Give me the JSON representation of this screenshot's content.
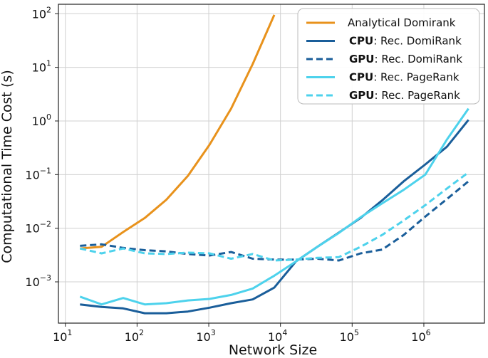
{
  "chart_data": {
    "type": "line",
    "title": "",
    "xlabel": "Network Size",
    "ylabel": "Computational Time Cost (s)",
    "xscale": "log",
    "yscale": "log",
    "xlim": [
      8,
      7000000
    ],
    "ylim": [
      0.00017,
      150
    ],
    "grid": true,
    "legend_position": "top-right",
    "x_ticks": [
      {
        "value": 10,
        "base": "10",
        "exp": "1"
      },
      {
        "value": 100,
        "base": "10",
        "exp": "2"
      },
      {
        "value": 1000,
        "base": "10",
        "exp": "3"
      },
      {
        "value": 10000,
        "base": "10",
        "exp": "4"
      },
      {
        "value": 100000,
        "base": "10",
        "exp": "5"
      },
      {
        "value": 1000000,
        "base": "10",
        "exp": "6"
      }
    ],
    "y_ticks": [
      {
        "value": 0.001,
        "base": "10",
        "exp": "−3"
      },
      {
        "value": 0.01,
        "base": "10",
        "exp": "−2"
      },
      {
        "value": 0.1,
        "base": "10",
        "exp": "−1"
      },
      {
        "value": 1,
        "base": "10",
        "exp": "0"
      },
      {
        "value": 10,
        "base": "10",
        "exp": "1"
      },
      {
        "value": 100,
        "base": "10",
        "exp": "2"
      }
    ],
    "series": [
      {
        "name": "Analytical Domirank",
        "legend_prefix": "",
        "legend_label": "Analytical Domirank",
        "color": "#E8921C",
        "dash": "solid",
        "x": [
          16,
          32,
          64,
          128,
          256,
          512,
          1024,
          2048,
          4096,
          8192
        ],
        "y": [
          0.0042,
          0.0045,
          0.0085,
          0.0155,
          0.034,
          0.095,
          0.36,
          1.7,
          11.5,
          95
        ]
      },
      {
        "name": "CPU: Rec. DomiRank",
        "legend_prefix": "CPU",
        "legend_label": ": Rec. DomiRank",
        "color": "#1A5E9A",
        "dash": "solid",
        "x": [
          16,
          32,
          64,
          128,
          256,
          512,
          1024,
          2048,
          4096,
          8192,
          16384,
          32768,
          65536,
          131072,
          262144,
          524288,
          1048576,
          2097152,
          4194304
        ],
        "y": [
          0.00038,
          0.00034,
          0.00032,
          0.00026,
          0.00026,
          0.00028,
          0.00033,
          0.0004,
          0.00047,
          0.00078,
          0.0024,
          0.0045,
          0.0083,
          0.0155,
          0.033,
          0.075,
          0.155,
          0.33,
          1.05
        ]
      },
      {
        "name": "GPU: Rec. DomiRank",
        "legend_prefix": "GPU",
        "legend_label": ": Rec. DomiRank",
        "color": "#1A5E9A",
        "dash": "dashed",
        "x": [
          16,
          32,
          64,
          128,
          256,
          512,
          1024,
          2048,
          4096,
          8192,
          16384,
          32768,
          65536,
          131072,
          262144,
          524288,
          1048576,
          2097152,
          4194304
        ],
        "y": [
          0.0047,
          0.005,
          0.0043,
          0.0039,
          0.0037,
          0.0033,
          0.0031,
          0.0036,
          0.0027,
          0.0026,
          0.0026,
          0.0027,
          0.0025,
          0.0034,
          0.004,
          0.0075,
          0.0165,
          0.035,
          0.075
        ]
      },
      {
        "name": "CPU: Rec. PageRank",
        "legend_prefix": "CPU",
        "legend_label": ": Rec. PageRank",
        "color": "#4DD2EC",
        "dash": "solid",
        "x": [
          16,
          32,
          64,
          128,
          256,
          512,
          1024,
          2048,
          4096,
          8192,
          16384,
          32768,
          65536,
          131072,
          262144,
          524288,
          1048576,
          2097152,
          4194304
        ],
        "y": [
          0.00053,
          0.00038,
          0.0005,
          0.00038,
          0.0004,
          0.00045,
          0.00048,
          0.00057,
          0.00075,
          0.0013,
          0.0024,
          0.0045,
          0.0082,
          0.016,
          0.029,
          0.052,
          0.1,
          0.45,
          1.7
        ]
      },
      {
        "name": "GPU: Rec. PageRank",
        "legend_prefix": "GPU",
        "legend_label": ": Rec. PageRank",
        "color": "#4DD2EC",
        "dash": "dashed",
        "x": [
          16,
          32,
          64,
          128,
          256,
          512,
          1024,
          2048,
          4096,
          8192,
          16384,
          32768,
          65536,
          131072,
          262144,
          524288,
          1048576,
          2097152,
          4194304
        ],
        "y": [
          0.0042,
          0.0034,
          0.0042,
          0.0034,
          0.0033,
          0.0035,
          0.0034,
          0.0027,
          0.0033,
          0.0025,
          0.0026,
          0.0028,
          0.0029,
          0.0045,
          0.0075,
          0.014,
          0.027,
          0.055,
          0.11
        ]
      }
    ]
  }
}
